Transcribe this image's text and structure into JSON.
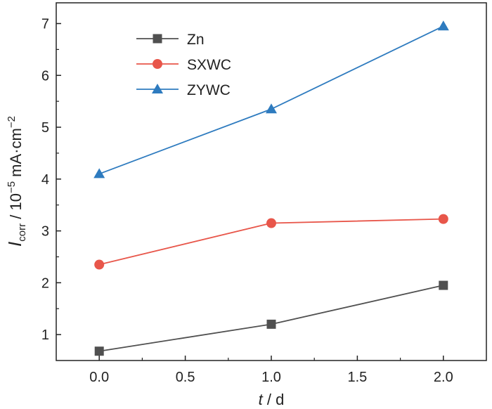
{
  "chart_data": {
    "type": "line",
    "x": [
      0.0,
      1.0,
      2.0
    ],
    "series": [
      {
        "name": "Zn",
        "values": [
          0.68,
          1.2,
          1.95
        ],
        "color": "#505050",
        "marker": "square"
      },
      {
        "name": "SXWC",
        "values": [
          2.35,
          3.15,
          3.23
        ],
        "color": "#e8564a",
        "marker": "circle"
      },
      {
        "name": "ZYWC",
        "values": [
          4.1,
          5.35,
          6.95
        ],
        "color": "#2e7bbf",
        "marker": "triangle"
      }
    ],
    "xlim": [
      -0.25,
      2.25
    ],
    "ylim": [
      0.5,
      7.4
    ],
    "xticks": [
      0.0,
      0.5,
      1.0,
      1.5,
      2.0
    ],
    "xtick_labels": [
      "0.0",
      "0.5",
      "1.0",
      "1.5",
      "2.0"
    ],
    "yticks": [
      1,
      2,
      3,
      4,
      5,
      6,
      7
    ],
    "ytick_labels": [
      "1",
      "2",
      "3",
      "4",
      "5",
      "6",
      "7"
    ],
    "xlabel": {
      "var": "t",
      "unit": " / d"
    },
    "ylabel": {
      "var": "I",
      "sub": "corr",
      "mid": " / 10",
      "exp1": "−5",
      "unit": " mA·cm",
      "exp2": "−2"
    },
    "legend_position": "top-left",
    "grid": false
  }
}
